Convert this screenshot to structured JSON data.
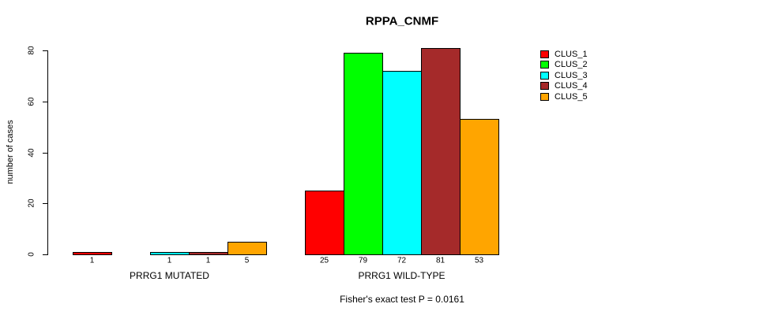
{
  "title": "RPPA_CNMF",
  "chart_data": {
    "type": "bar",
    "title": "RPPA_CNMF",
    "xlabel": "",
    "ylabel": "number of cases",
    "ylim": [
      0,
      80
    ],
    "yticks": [
      0,
      20,
      40,
      60,
      80
    ],
    "grid": false,
    "legend_position": "right",
    "series": [
      {
        "name": "CLUS_1",
        "color": "#FF0000"
      },
      {
        "name": "CLUS_2",
        "color": "#00FF00"
      },
      {
        "name": "CLUS_3",
        "color": "#00FFFF"
      },
      {
        "name": "CLUS_4",
        "color": "#A52A2A"
      },
      {
        "name": "CLUS_5",
        "color": "#FFA500"
      }
    ],
    "groups": [
      {
        "label": "PRRG1 MUTATED",
        "values": [
          1,
          0,
          1,
          1,
          5
        ],
        "bar_labels": [
          "1",
          "",
          "1",
          "1",
          "5"
        ]
      },
      {
        "label": "PRRG1 WILD-TYPE",
        "values": [
          25,
          79,
          72,
          81,
          53
        ],
        "bar_labels": [
          "25",
          "79",
          "72",
          "81",
          "53"
        ]
      }
    ],
    "annotation": "Fisher's exact test P = 0.0161"
  }
}
